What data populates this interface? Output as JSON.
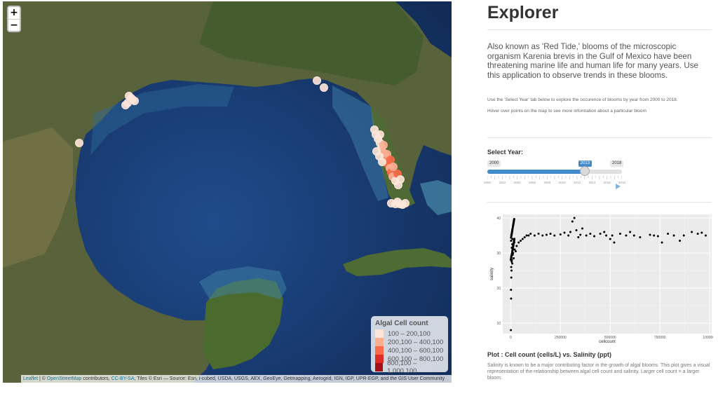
{
  "map": {
    "zoom_in": "+",
    "zoom_out": "−",
    "legend": {
      "title": "Algal Cell count",
      "items": [
        {
          "label": "100 – 200,100",
          "color": "#fee5d9"
        },
        {
          "label": "200,100 – 400,100",
          "color": "#fcae91"
        },
        {
          "label": "400,100 – 600,100",
          "color": "#fb6a4a"
        },
        {
          "label": "600,100 – 800,100",
          "color": "#de2d26"
        },
        {
          "label": "800,100 – 1,000,100",
          "color": "#a50f15"
        }
      ]
    },
    "attribution": {
      "leaflet": "Leaflet",
      "sep1": " | © ",
      "osm": "OpenStreetMap",
      "mid": " contributors, ",
      "license": "CC-BY-SA",
      "rest": ", Tiles © Esri — Source: Esri, i-cubed, USDA, USGS, AEX, GeoEye, Getmapping, Aerogrid, IGN, IGP, UPR-EGP, and the GIS User Community"
    }
  },
  "sidebar": {
    "title": "Explorer",
    "intro": "Also known as 'Red Tide,' blooms of the microscopic organism Karenia brevis in the Gulf of Mexico have been threatening marine life and human life for many years. Use this application to observe trends in these blooms.",
    "help1": "Use the 'Select Year' tab below to explore the occurence of blooms by year from 2000 to 2018.",
    "help2": "Hover over points on the map to see more information about a particular bloom",
    "slider": {
      "label": "Select Year:",
      "min": 2000,
      "max": 2018,
      "value": 2013,
      "min_label": "2000",
      "max_label": "2018",
      "value_label": "2013",
      "tick_labels": [
        "2000",
        "2002",
        "2004",
        "2006",
        "2008",
        "2010",
        "2012",
        "2014",
        "2016",
        "2018"
      ]
    },
    "plot_title": "Plot : Cell count (cells/L) vs. Salinity (ppt)",
    "plot_desc": "Salinity is known to be a major contributing factor in the growth of algal blooms. This plot gives a visual representation of the relationship between algal cell count and salinity. Larger cell count = a larger bloom."
  },
  "chart_data": {
    "type": "scatter",
    "xlabel": "cellcount",
    "ylabel": "salinity",
    "xlim": [
      -40000,
      1010000
    ],
    "ylim": [
      7,
      41
    ],
    "xticks": [
      0,
      250000,
      500000,
      750000,
      1000000
    ],
    "xtick_labels": [
      "0",
      "250000",
      "500000",
      "750000",
      "1000000"
    ],
    "yticks": [
      10,
      20,
      30,
      40
    ],
    "ytick_labels": [
      "10",
      "20",
      "30",
      "40"
    ],
    "grid": true,
    "points": [
      [
        1000,
        8
      ],
      [
        2000,
        17
      ],
      [
        1500,
        19.5
      ],
      [
        3000,
        23
      ],
      [
        4000,
        25
      ],
      [
        2500,
        26
      ],
      [
        5000,
        27.5
      ],
      [
        6000,
        28
      ],
      [
        8000,
        27
      ],
      [
        3000,
        29
      ],
      [
        10000,
        29.5
      ],
      [
        15000,
        28.5
      ],
      [
        12000,
        30
      ],
      [
        20000,
        31
      ],
      [
        5000,
        31.5
      ],
      [
        25000,
        30.5
      ],
      [
        30000,
        32
      ],
      [
        8000,
        32.5
      ],
      [
        18000,
        33
      ],
      [
        40000,
        33
      ],
      [
        2000,
        33.5
      ],
      [
        50000,
        33.5
      ],
      [
        60000,
        34
      ],
      [
        9000,
        34
      ],
      [
        70000,
        34.5
      ],
      [
        80000,
        35
      ],
      [
        3000,
        35
      ],
      [
        90000,
        35
      ],
      [
        100000,
        35.5
      ],
      [
        120000,
        35
      ],
      [
        140000,
        35.5
      ],
      [
        160000,
        35
      ],
      [
        180000,
        35.2
      ],
      [
        200000,
        35.5
      ],
      [
        220000,
        35
      ],
      [
        250000,
        35.3
      ],
      [
        270000,
        35.8
      ],
      [
        290000,
        35
      ],
      [
        300000,
        36
      ],
      [
        310000,
        39
      ],
      [
        320000,
        40
      ],
      [
        330000,
        36.5
      ],
      [
        340000,
        34.5
      ],
      [
        350000,
        35.2
      ],
      [
        360000,
        37
      ],
      [
        380000,
        35
      ],
      [
        400000,
        35.5
      ],
      [
        420000,
        34.8
      ],
      [
        450000,
        35.5
      ],
      [
        470000,
        36
      ],
      [
        480000,
        35
      ],
      [
        500000,
        34
      ],
      [
        510000,
        35
      ],
      [
        520000,
        33
      ],
      [
        550000,
        35.5
      ],
      [
        580000,
        35
      ],
      [
        600000,
        36
      ],
      [
        620000,
        35
      ],
      [
        650000,
        34.5
      ],
      [
        700000,
        35.2
      ],
      [
        720000,
        35
      ],
      [
        740000,
        34.8
      ],
      [
        760000,
        33
      ],
      [
        790000,
        35.5
      ],
      [
        820000,
        35
      ],
      [
        850000,
        33.5
      ],
      [
        870000,
        35
      ],
      [
        910000,
        36
      ],
      [
        940000,
        35.5
      ],
      [
        960000,
        35.8
      ],
      [
        980000,
        35
      ]
    ]
  }
}
